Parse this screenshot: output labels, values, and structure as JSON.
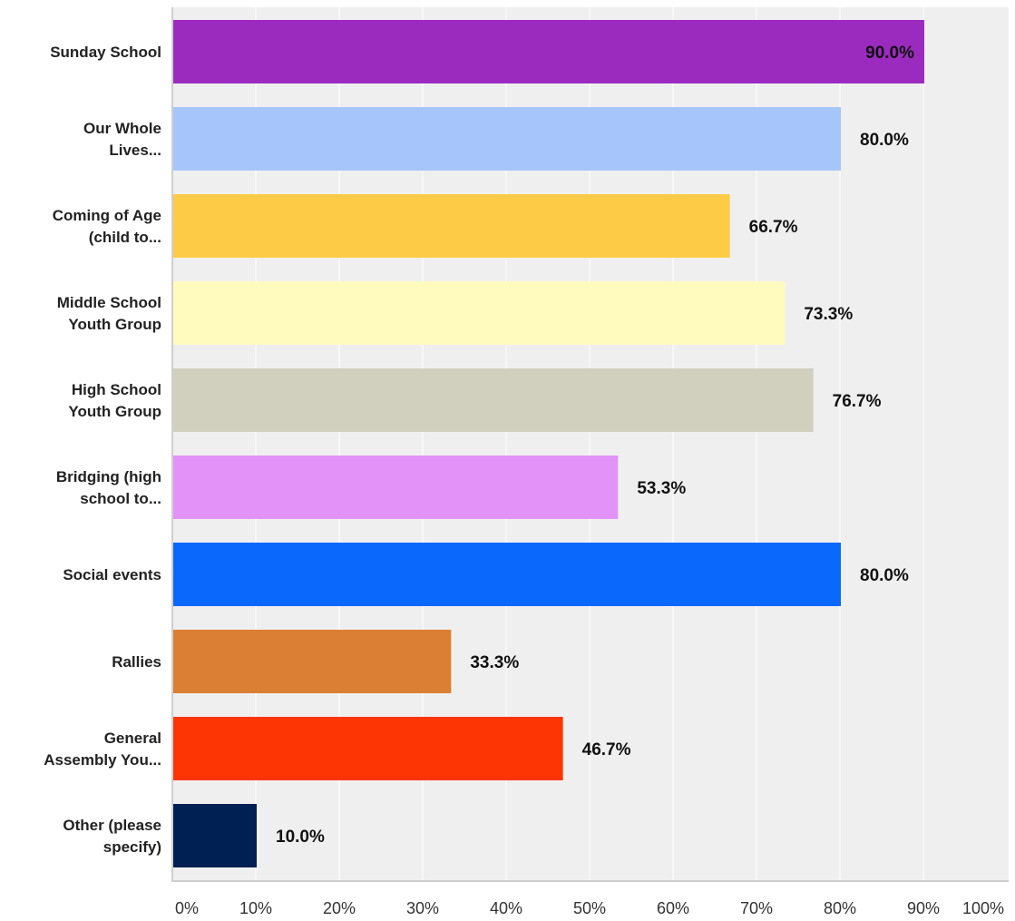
{
  "chart_data": {
    "type": "bar",
    "orientation": "horizontal",
    "categories": [
      [
        "Sunday School"
      ],
      [
        "Our Whole",
        "Lives..."
      ],
      [
        "Coming of Age",
        "(child to..."
      ],
      [
        "Middle School",
        "Youth Group"
      ],
      [
        "High School",
        "Youth Group"
      ],
      [
        "Bridging (high",
        "school to..."
      ],
      [
        "Social events"
      ],
      [
        "Rallies"
      ],
      [
        "General",
        "Assembly You..."
      ],
      [
        "Other (please",
        "specify)"
      ]
    ],
    "values": [
      90.0,
      80.0,
      66.7,
      73.3,
      76.7,
      53.3,
      80.0,
      33.3,
      46.7,
      10.0
    ],
    "value_labels": [
      "90.0%",
      "80.0%",
      "66.7%",
      "73.3%",
      "76.7%",
      "53.3%",
      "80.0%",
      "33.3%",
      "46.7%",
      "10.0%"
    ],
    "colors": [
      "#9b2bbf",
      "#a6c6fb",
      "#fdcb45",
      "#fffabe",
      "#d1d0be",
      "#e393f8",
      "#0a68fc",
      "#db7f35",
      "#fd3505",
      "#001f53"
    ],
    "xticks": [
      "0%",
      "10%",
      "20%",
      "30%",
      "40%",
      "50%",
      "60%",
      "70%",
      "80%",
      "90%",
      "100%"
    ],
    "xlim": [
      0,
      100
    ],
    "grid": true,
    "legend": "none",
    "title": "",
    "xlabel": "",
    "ylabel": ""
  }
}
